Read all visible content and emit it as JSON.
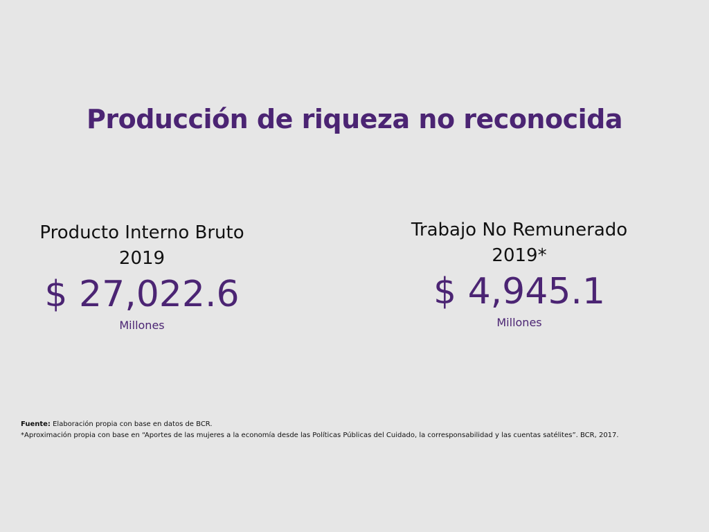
{
  "title": "Producción de riqueza no reconocida",
  "stats": [
    {
      "label_line1": "Producto Interno Bruto",
      "label_line2": "2019",
      "value": "$ 27,022.6",
      "unit": "Millones"
    },
    {
      "label_line1": "Trabajo No Remunerado",
      "label_line2": "2019*",
      "value": "$ 4,945.1",
      "unit": "Millones"
    }
  ],
  "footnotes": {
    "source_label": "Fuente:",
    "source_text": " Elaboración propia con base en datos de BCR.",
    "note": "*Aproximación propia con base en “Aportes de las mujeres a la economía desde las Políticas Públicas del Cuidado, la corresponsabilidad y las cuentas satélites”. BCR, 2017."
  },
  "colors": {
    "accent": "#4b2473",
    "background": "#e6e6e6",
    "text": "#111111"
  }
}
